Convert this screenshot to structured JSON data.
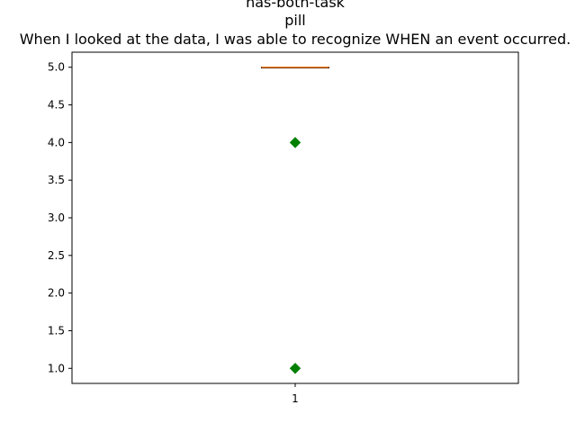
{
  "chart_data": {
    "type": "box",
    "title_lines": [
      "has-both-task",
      "pill",
      "When I looked at the data, I was able to recognize WHEN an event occurred."
    ],
    "categories": [
      "1"
    ],
    "ylim": [
      0.8,
      5.2
    ],
    "yticks": [
      1.0,
      1.5,
      2.0,
      2.5,
      3.0,
      3.5,
      4.0,
      4.5,
      5.0
    ],
    "ytick_labels": [
      "1.0",
      "1.5",
      "2.0",
      "2.5",
      "3.0",
      "3.5",
      "4.0",
      "4.5",
      "5.0"
    ],
    "xtick_labels": [
      "1"
    ],
    "box": {
      "q1": 5.0,
      "median": 5.0,
      "q3": 5.0,
      "whisker_low": 5.0,
      "whisker_high": 5.0
    },
    "outliers": [
      4.0,
      1.0
    ],
    "colors": {
      "box": "#000000",
      "median": "#ff7f0e",
      "outlier": "#008000"
    },
    "grid": false
  }
}
